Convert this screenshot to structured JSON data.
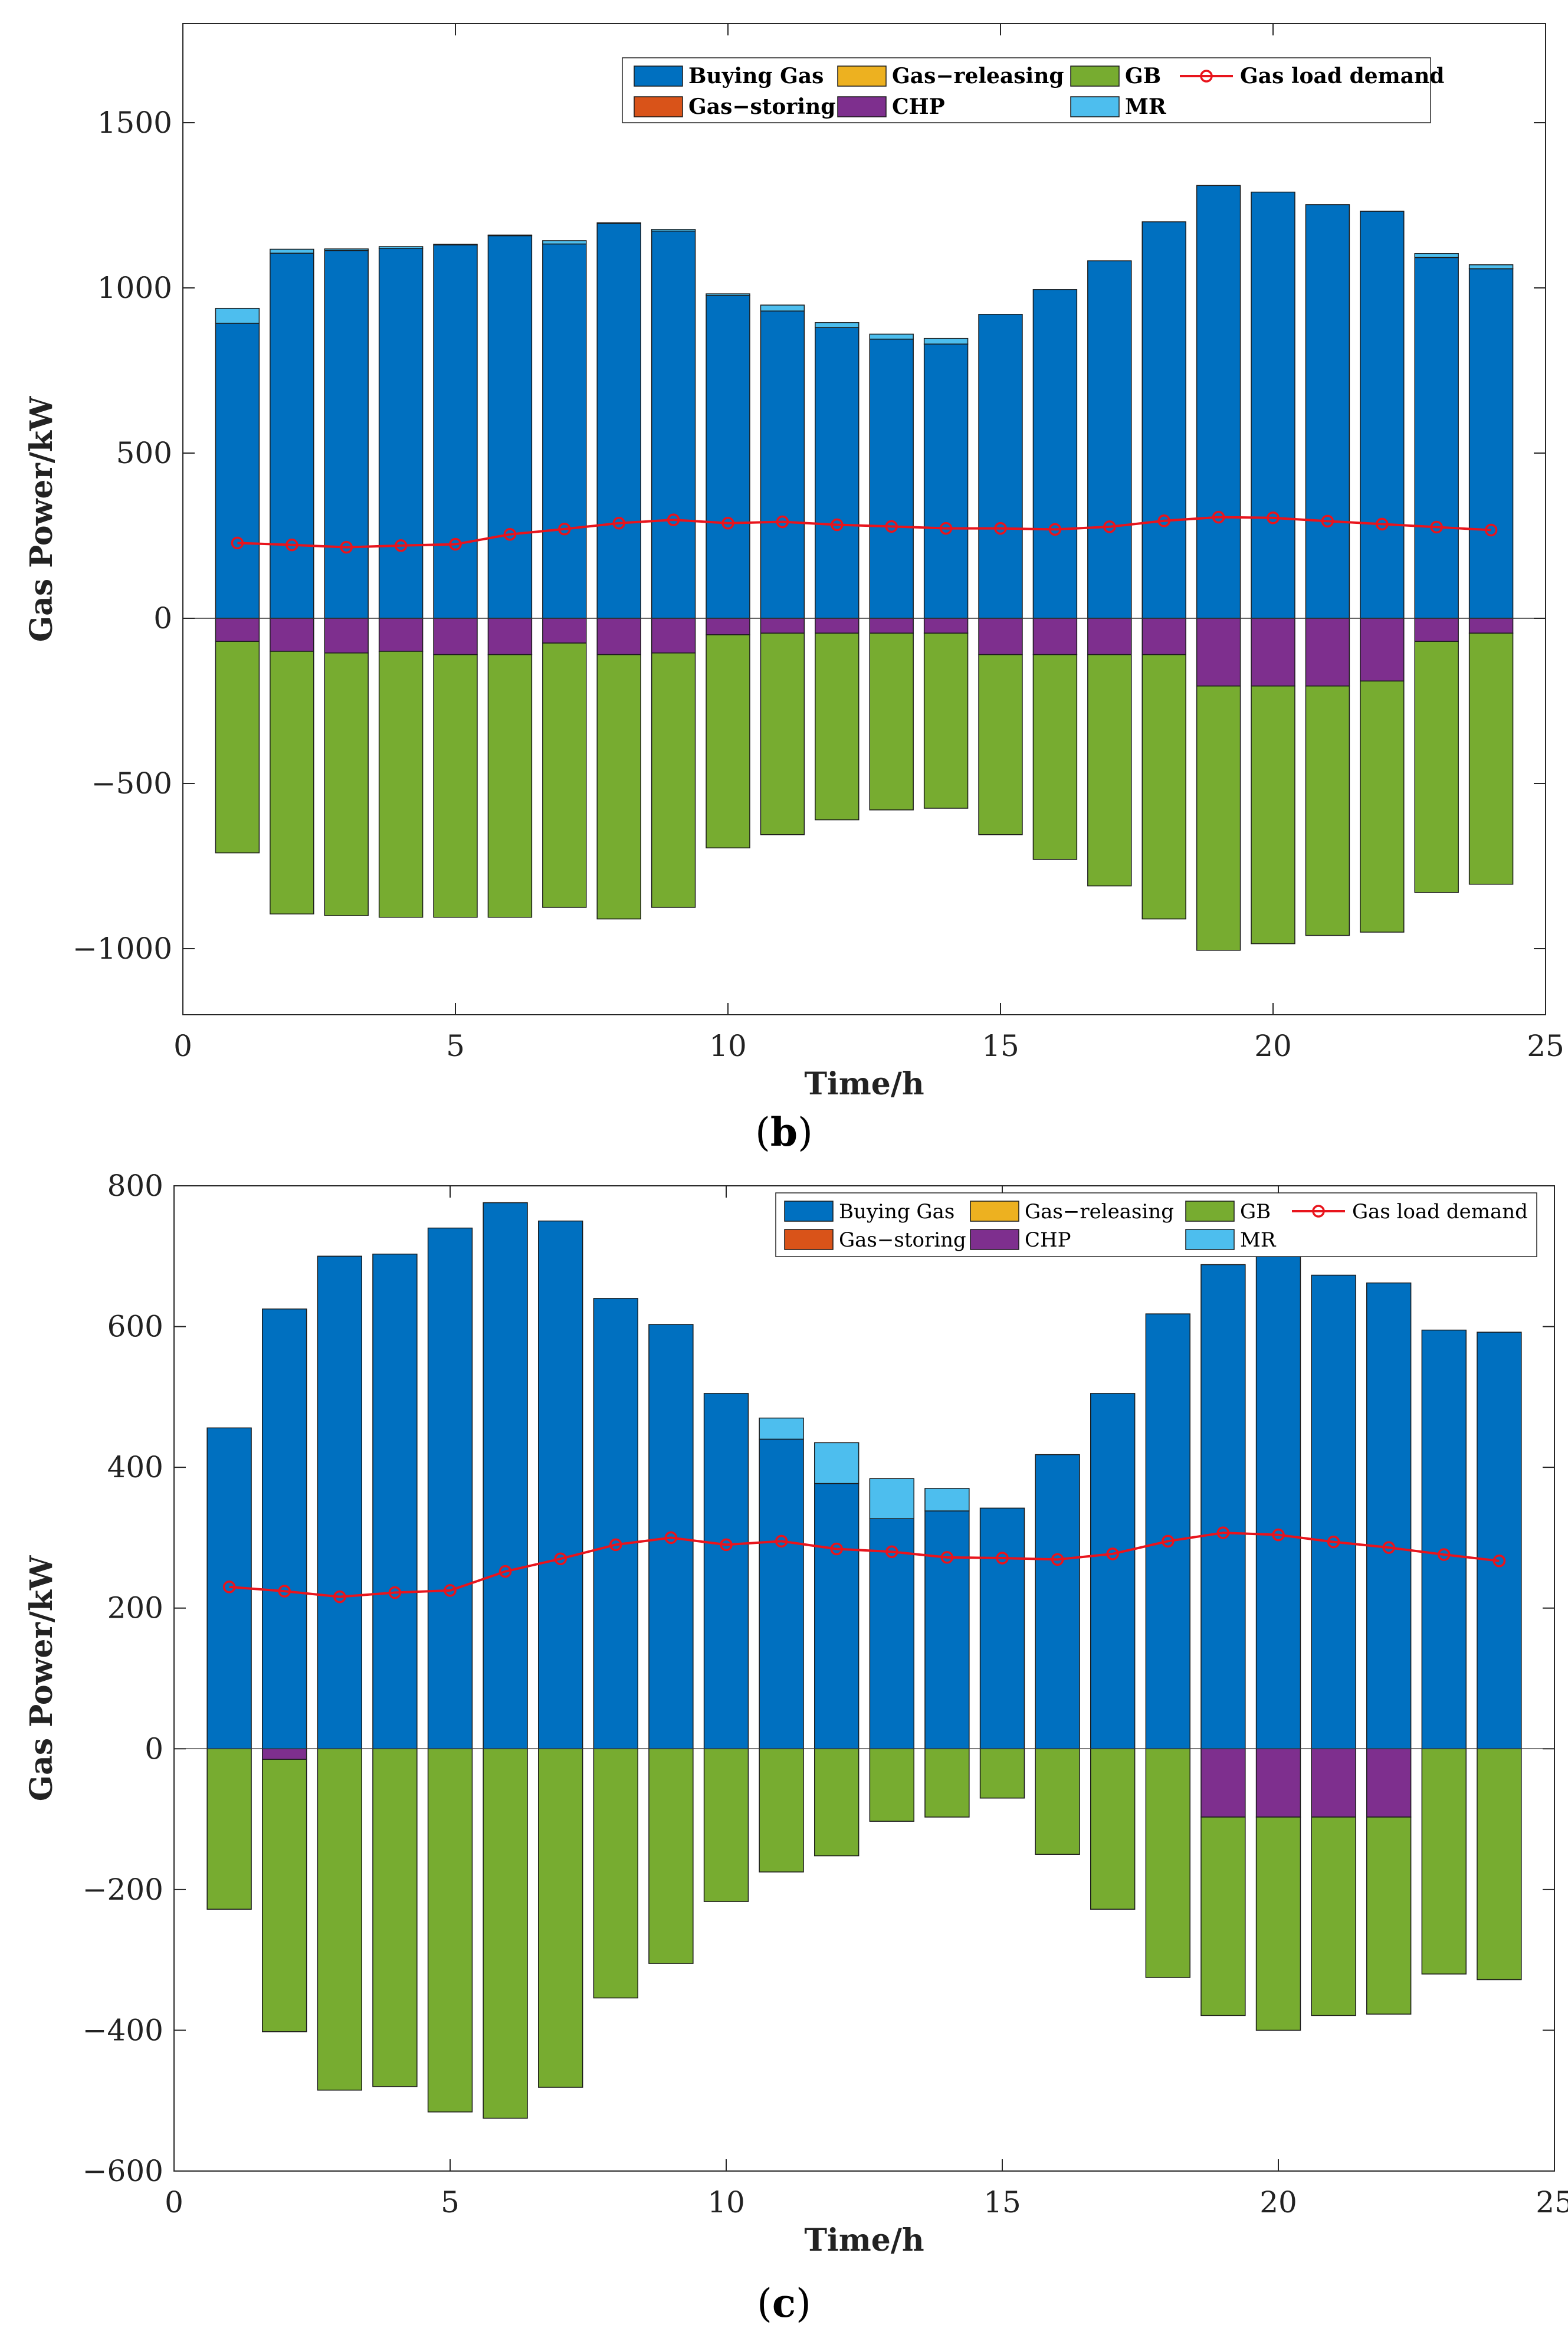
{
  "colors": {
    "buying_gas": "#0070c0",
    "gas_storing": "#d95319",
    "gas_releasing": "#edb120",
    "chp": "#7e2f8e",
    "gb": "#77ac30",
    "mr": "#4dbeee",
    "load": "#e8141c"
  },
  "chart_data": [
    {
      "id": "b",
      "caption_letter": "b",
      "caption": "(b)",
      "type": "bar",
      "stacked": true,
      "xlabel": "Time/h",
      "ylabel": "Gas Power/kW",
      "xlim": [
        0,
        25
      ],
      "ylim": [
        -1200,
        1800
      ],
      "xticks": [
        0,
        5,
        10,
        15,
        20,
        25
      ],
      "yticks": [
        -1000,
        -500,
        0,
        500,
        1000,
        1500
      ],
      "ytick_labels": [
        "−1000",
        "−500",
        "0",
        "500",
        "1000",
        "1500"
      ],
      "x": [
        1,
        2,
        3,
        4,
        5,
        6,
        7,
        8,
        9,
        10,
        11,
        12,
        13,
        14,
        15,
        16,
        17,
        18,
        19,
        20,
        21,
        22,
        23,
        24
      ],
      "legend_bold": true,
      "legend": [
        {
          "key": "buying_gas",
          "label": "Buying Gas",
          "kind": "bar"
        },
        {
          "key": "gas_releasing",
          "label": "Gas−releasing",
          "kind": "bar"
        },
        {
          "key": "gb",
          "label": "GB",
          "kind": "bar"
        },
        {
          "key": "load",
          "label": "Gas load demand",
          "kind": "line"
        },
        {
          "key": "gas_storing",
          "label": "Gas−storing",
          "kind": "bar"
        },
        {
          "key": "chp",
          "label": "CHP",
          "kind": "bar"
        },
        {
          "key": "mr",
          "label": "MR",
          "kind": "bar"
        }
      ],
      "positive_series": [
        {
          "key": "buying_gas",
          "name": "Buying Gas",
          "values": [
            893,
            1105,
            1113,
            1120,
            1130,
            1158,
            1133,
            1195,
            1172,
            977,
            930,
            880,
            845,
            830,
            920,
            995,
            1082,
            1200,
            1310,
            1290,
            1252,
            1232,
            1092,
            1058
          ]
        },
        {
          "key": "mr",
          "name": "MR",
          "values": [
            45,
            12,
            5,
            5,
            2,
            2,
            10,
            2,
            5,
            5,
            18,
            15,
            15,
            17,
            0,
            0,
            0,
            0,
            0,
            0,
            0,
            0,
            12,
            12
          ]
        }
      ],
      "negative_series": [
        {
          "key": "chp",
          "name": "CHP",
          "values": [
            -70,
            -100,
            -105,
            -100,
            -110,
            -110,
            -75,
            -110,
            -105,
            -50,
            -45,
            -45,
            -45,
            -45,
            -110,
            -110,
            -110,
            -110,
            -205,
            -205,
            -205,
            -190,
            -70,
            -45
          ]
        },
        {
          "key": "gb",
          "name": "GB",
          "values": [
            -640,
            -795,
            -795,
            -805,
            -795,
            -795,
            -800,
            -800,
            -770,
            -645,
            -610,
            -565,
            -535,
            -530,
            -545,
            -620,
            -700,
            -800,
            -800,
            -780,
            -755,
            -760,
            -760,
            -760
          ]
        }
      ],
      "line_series": {
        "key": "load",
        "name": "Gas load demand",
        "values": [
          228,
          222,
          215,
          220,
          224,
          254,
          270,
          288,
          298,
          288,
          292,
          283,
          278,
          272,
          272,
          269,
          277,
          295,
          306,
          304,
          294,
          285,
          276,
          267
        ]
      }
    },
    {
      "id": "c",
      "caption_letter": "c",
      "caption": "(c)",
      "type": "bar",
      "stacked": true,
      "xlabel": "Time/h",
      "ylabel": "Gas Power/kW",
      "xlim": [
        0,
        25
      ],
      "ylim": [
        -600,
        800
      ],
      "xticks": [
        0,
        5,
        10,
        15,
        20,
        25
      ],
      "yticks": [
        -600,
        -400,
        -200,
        0,
        200,
        400,
        600,
        800
      ],
      "ytick_labels": [
        "−600",
        "−400",
        "−200",
        "0",
        "200",
        "400",
        "600",
        "800"
      ],
      "x": [
        1,
        2,
        3,
        4,
        5,
        6,
        7,
        8,
        9,
        10,
        11,
        12,
        13,
        14,
        15,
        16,
        17,
        18,
        19,
        20,
        21,
        22,
        23,
        24
      ],
      "legend_bold": false,
      "legend": [
        {
          "key": "buying_gas",
          "label": "Buying Gas",
          "kind": "bar"
        },
        {
          "key": "gas_releasing",
          "label": "Gas−releasing",
          "kind": "bar"
        },
        {
          "key": "gb",
          "label": "GB",
          "kind": "bar"
        },
        {
          "key": "load",
          "label": "Gas load demand",
          "kind": "line"
        },
        {
          "key": "gas_storing",
          "label": "Gas−storing",
          "kind": "bar"
        },
        {
          "key": "chp",
          "label": "CHP",
          "kind": "bar"
        },
        {
          "key": "mr",
          "label": "MR",
          "kind": "bar"
        }
      ],
      "positive_series": [
        {
          "key": "buying_gas",
          "name": "Buying Gas",
          "values": [
            456,
            625,
            700,
            703,
            740,
            776,
            750,
            640,
            603,
            505,
            440,
            377,
            327,
            338,
            342,
            418,
            505,
            618,
            688,
            703,
            673,
            662,
            595,
            592
          ]
        },
        {
          "key": "mr",
          "name": "MR",
          "values": [
            0,
            0,
            0,
            0,
            0,
            0,
            0,
            0,
            0,
            0,
            30,
            58,
            57,
            32,
            0,
            0,
            0,
            0,
            0,
            0,
            0,
            0,
            0,
            0
          ]
        }
      ],
      "negative_series": [
        {
          "key": "chp",
          "name": "CHP",
          "values": [
            0,
            -15,
            0,
            0,
            0,
            0,
            0,
            0,
            0,
            0,
            0,
            0,
            0,
            0,
            0,
            0,
            0,
            0,
            -97,
            -97,
            -97,
            -97,
            0,
            0
          ]
        },
        {
          "key": "gb",
          "name": "GB",
          "values": [
            -228,
            -387,
            -485,
            -480,
            -516,
            -525,
            -481,
            -354,
            -305,
            -217,
            -175,
            -152,
            -103,
            -97,
            -70,
            -150,
            -228,
            -325,
            -282,
            -303,
            -282,
            -280,
            -320,
            -328
          ]
        }
      ],
      "line_series": {
        "key": "load",
        "name": "Gas load demand",
        "values": [
          230,
          224,
          216,
          222,
          225,
          252,
          270,
          290,
          300,
          290,
          295,
          284,
          280,
          272,
          271,
          269,
          277,
          295,
          307,
          304,
          294,
          286,
          276,
          267
        ]
      }
    }
  ]
}
